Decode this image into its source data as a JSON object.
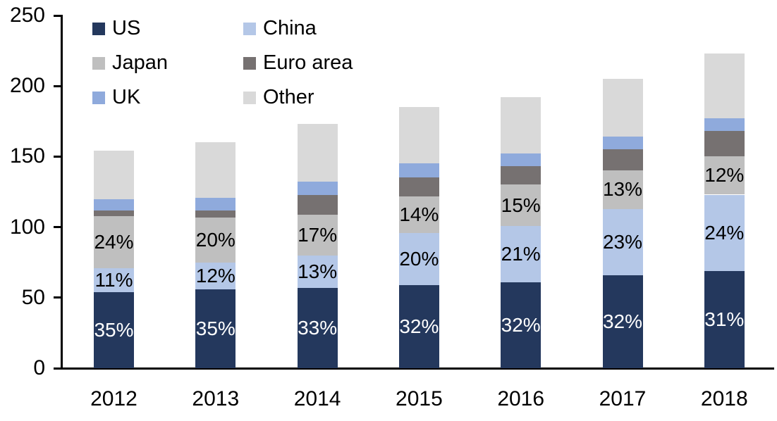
{
  "chart_data": {
    "type": "bar",
    "stacked": true,
    "title": "",
    "xlabel": "",
    "ylabel": "",
    "categories": [
      "2012",
      "2013",
      "2014",
      "2015",
      "2016",
      "2017",
      "2018"
    ],
    "series": [
      {
        "name": "US",
        "color": "#24385D",
        "values": [
          54,
          56,
          57,
          59,
          61,
          66,
          69
        ],
        "labels": [
          "35%",
          "35%",
          "33%",
          "32%",
          "32%",
          "32%",
          "31%"
        ],
        "label_color": "#FFFFFF"
      },
      {
        "name": "China",
        "color": "#B4C7E7",
        "values": [
          17,
          19,
          23,
          37,
          40,
          47,
          54
        ],
        "labels": [
          "11%",
          "12%",
          "13%",
          "20%",
          "21%",
          "23%",
          "24%"
        ],
        "label_color": "#000000"
      },
      {
        "name": "Japan",
        "color": "#BFBFBF",
        "values": [
          37,
          32,
          29,
          26,
          29,
          27,
          27
        ],
        "labels": [
          "24%",
          "20%",
          "17%",
          "14%",
          "15%",
          "13%",
          "12%"
        ],
        "label_color": "#000000"
      },
      {
        "name": "Euro area",
        "color": "#767171",
        "values": [
          4,
          5,
          14,
          13,
          13,
          15,
          18
        ],
        "labels": null,
        "label_color": null
      },
      {
        "name": "UK",
        "color": "#8FAADC",
        "values": [
          8,
          9,
          9,
          10,
          9,
          9,
          9
        ],
        "labels": null,
        "label_color": null
      },
      {
        "name": "Other",
        "color": "#D9D9D9",
        "values": [
          34,
          39,
          41,
          40,
          40,
          41,
          46
        ],
        "labels": null,
        "label_color": null
      }
    ],
    "totals_estimated": [
      154,
      160,
      173,
      185,
      192,
      205,
      223
    ],
    "ylim": [
      0,
      250
    ],
    "yticks": [
      0,
      50,
      100,
      150,
      200,
      250
    ],
    "ytick_labels": [
      "0",
      "50",
      "100",
      "150",
      "200",
      "250"
    ],
    "grid": false,
    "legend_position": "top-left-inside",
    "legend_columns": 2,
    "legend_order": [
      "US",
      "China",
      "Japan",
      "Euro area",
      "UK",
      "Other"
    ],
    "axis_color": "#000000",
    "background_color": "#FFFFFF"
  }
}
